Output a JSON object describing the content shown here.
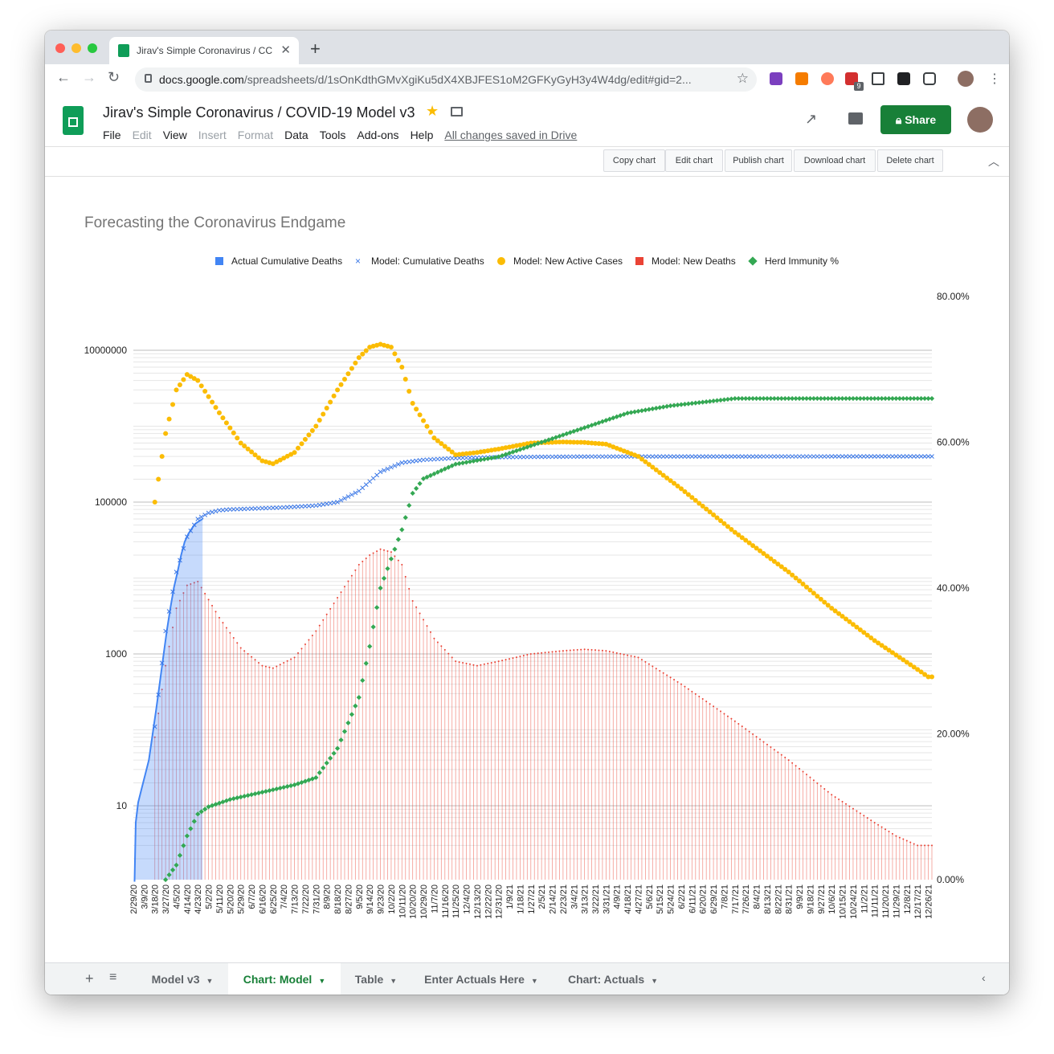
{
  "browser": {
    "tab_title": "Jirav's Simple Coronavirus / CC",
    "url_host": "docs.google.com",
    "url_rest": "/spreadsheets/d/1sOnKdthGMvXgiKu5dX4XBJFES1oM2GFKyGyH3y4W4dg/edit#gid=2...",
    "ext_badge": "9"
  },
  "app": {
    "title": "Jirav's Simple Coronavirus / COVID-19 Model v3",
    "menu": [
      "File",
      "Edit",
      "View",
      "Insert",
      "Format",
      "Data",
      "Tools",
      "Add-ons",
      "Help"
    ],
    "saved_status": "All changes saved in Drive",
    "share_label": "Share"
  },
  "chart_toolbar": {
    "buttons": [
      "Copy chart",
      "Edit chart",
      "Publish chart",
      "Download chart",
      "Delete chart"
    ]
  },
  "sheet_tabs": [
    "Model v3",
    "Chart: Model",
    "Table",
    "Enter Actuals Here",
    "Chart: Actuals"
  ],
  "active_sheet": "Chart: Model",
  "colors": {
    "actual": "#4285f4",
    "model_cum": "#3b78e7",
    "active_cases": "#fbbc04",
    "new_deaths": "#ea4335",
    "herd": "#34a853",
    "share_green": "#188038"
  },
  "chart_data": {
    "type": "line",
    "title": "Forecasting the Coronavirus Endgame",
    "legend_position": "top",
    "series_names": [
      "Actual Cumulative Deaths",
      "Model: Cumulative Deaths",
      "Model: New Active Cases",
      "Model: New Deaths",
      "Herd Immunity %"
    ],
    "left_axis": {
      "scale": "log",
      "ticks": [
        "10000000",
        "100000",
        "1000",
        "10"
      ],
      "tick_values": [
        10000000,
        100000,
        1000,
        10
      ]
    },
    "right_axis": {
      "ticks": [
        "80.00%",
        "60.00%",
        "40.00%",
        "20.00%",
        "0.00%"
      ],
      "tick_values": [
        0.8,
        0.6,
        0.4,
        0.2,
        0.0
      ]
    },
    "x_start": "2/29/20",
    "x_step_days": 3,
    "x_count": 224,
    "x_tick_labels": [
      "2/29/20",
      "3/9/20",
      "3/18/20",
      "3/27/20",
      "4/5/20",
      "4/14/20",
      "4/23/20",
      "5/2/20",
      "5/11/20",
      "5/20/20",
      "5/29/20",
      "6/7/20",
      "6/16/20",
      "6/25/20",
      "7/4/20",
      "7/13/20",
      "7/22/20",
      "7/31/20",
      "8/9/20",
      "8/18/20",
      "8/27/20",
      "9/5/20",
      "9/14/20",
      "9/23/20",
      "10/2/20",
      "10/11/20",
      "10/20/20",
      "10/29/20",
      "11/7/20",
      "11/16/20",
      "11/25/20",
      "12/4/20",
      "12/13/20",
      "12/22/20",
      "12/31/20",
      "1/9/21",
      "1/18/21",
      "1/27/21",
      "2/5/21",
      "2/14/21",
      "2/23/21",
      "3/4/21",
      "3/13/21",
      "3/22/21",
      "3/31/21",
      "4/9/21",
      "4/18/21",
      "4/27/21",
      "5/6/21",
      "5/15/21",
      "5/24/21",
      "6/2/21",
      "6/11/21",
      "6/20/21",
      "6/29/21",
      "7/8/21",
      "7/17/21",
      "7/26/21",
      "8/4/21",
      "8/13/21",
      "8/22/21",
      "8/31/21",
      "9/9/21",
      "9/18/21",
      "9/27/21",
      "10/6/21",
      "10/15/21",
      "10/24/21",
      "11/2/21",
      "11/11/21",
      "11/20/21",
      "11/29/21",
      "12/8/21",
      "12/17/21",
      "12/26/21"
    ],
    "actual_cumulative_deaths": {
      "x": [
        "3/1/20",
        "3/2/20",
        "3/4/20",
        "3/7/20",
        "3/10/20",
        "3/13/20",
        "3/16/20",
        "3/19/20",
        "3/22/20",
        "3/25/20",
        "3/28/20",
        "3/31/20",
        "4/3/20",
        "4/6/20",
        "4/9/20",
        "4/12/20",
        "4/15/20",
        "4/18/20",
        "4/21/20",
        "4/24/20",
        "4/27/20"
      ],
      "y": [
        1,
        6,
        11,
        17,
        26,
        40,
        85,
        180,
        400,
        900,
        2000,
        4000,
        7500,
        12000,
        20000,
        30000,
        38000,
        45000,
        52000,
        56000,
        60000
      ]
    },
    "model_cumulative_deaths": {
      "x": [
        "3/18/20",
        "3/27/20",
        "4/5/20",
        "4/14/20",
        "4/23/20",
        "5/2/20",
        "5/11/20",
        "5/20/20",
        "6/7/20",
        "7/4/20",
        "7/31/20",
        "8/18/20",
        "9/5/20",
        "9/23/20",
        "10/11/20",
        "10/29/20",
        "11/25/20",
        "12/31/20",
        "2/5/21",
        "3/22/21",
        "12/26/21"
      ],
      "y": [
        110,
        2000,
        12000,
        35000,
        60000,
        72000,
        78000,
        80000,
        82000,
        85000,
        90000,
        100000,
        140000,
        250000,
        330000,
        360000,
        380000,
        390000,
        395000,
        398000,
        400000
      ]
    },
    "model_new_active_cases": {
      "x": [
        "3/18/20",
        "3/27/20",
        "4/5/20",
        "4/14/20",
        "4/23/20",
        "5/11/20",
        "5/29/20",
        "6/16/20",
        "6/25/20",
        "7/13/20",
        "7/31/20",
        "8/18/20",
        "9/5/20",
        "9/14/20",
        "9/23/20",
        "10/2/20",
        "10/11/20",
        "10/20/20",
        "11/7/20",
        "11/25/20",
        "12/13/20",
        "12/31/20",
        "1/27/21",
        "2/23/21",
        "3/13/21",
        "3/31/21",
        "4/27/21",
        "6/2/21",
        "7/17/21",
        "8/31/21",
        "10/6/21",
        "11/11/21",
        "12/26/21"
      ],
      "y": [
        100000,
        800000,
        3000000,
        4800000,
        4000000,
        1500000,
        600000,
        350000,
        320000,
        450000,
        1000000,
        3000000,
        8000000,
        11000000,
        12000000,
        11000000,
        6000000,
        2000000,
        700000,
        420000,
        450000,
        500000,
        600000,
        620000,
        610000,
        580000,
        400000,
        150000,
        40000,
        12000,
        4000,
        1500,
        500
      ]
    },
    "model_new_deaths": {
      "x": [
        "3/18/20",
        "3/27/20",
        "4/5/20",
        "4/14/20",
        "4/23/20",
        "5/11/20",
        "5/29/20",
        "6/16/20",
        "6/25/20",
        "7/13/20",
        "7/31/20",
        "8/18/20",
        "9/5/20",
        "9/14/20",
        "9/23/20",
        "10/2/20",
        "10/11/20",
        "10/20/20",
        "11/7/20",
        "11/25/20",
        "12/13/20",
        "12/31/20",
        "1/27/21",
        "2/23/21",
        "3/13/21",
        "3/31/21",
        "4/27/21",
        "6/2/21",
        "7/17/21",
        "8/31/21",
        "10/6/21",
        "11/11/21",
        "11/29/21",
        "12/17/21",
        "12/26/21"
      ],
      "y": [
        80,
        700,
        4000,
        8000,
        9000,
        3000,
        1200,
        700,
        650,
        900,
        2000,
        5500,
        15000,
        20000,
        24000,
        22000,
        15000,
        5000,
        1600,
        800,
        700,
        800,
        1000,
        1100,
        1150,
        1100,
        900,
        400,
        130,
        40,
        14,
        6,
        4,
        3,
        3
      ]
    },
    "herd_immunity_pct": {
      "x": [
        "3/27/20",
        "4/5/20",
        "4/14/20",
        "4/23/20",
        "5/2/20",
        "5/20/20",
        "6/16/20",
        "7/13/20",
        "7/31/20",
        "8/18/20",
        "9/5/20",
        "9/14/20",
        "9/23/20",
        "10/2/20",
        "10/11/20",
        "10/20/20",
        "10/29/20",
        "11/25/20",
        "12/31/20",
        "2/5/21",
        "3/13/21",
        "4/18/21",
        "5/24/21",
        "7/17/21",
        "9/9/21",
        "12/26/21"
      ],
      "y": [
        0.0,
        0.02,
        0.06,
        0.09,
        0.1,
        0.11,
        0.12,
        0.13,
        0.14,
        0.18,
        0.25,
        0.32,
        0.4,
        0.44,
        0.48,
        0.53,
        0.55,
        0.57,
        0.58,
        0.6,
        0.62,
        0.64,
        0.65,
        0.66,
        0.66,
        0.66
      ]
    }
  }
}
